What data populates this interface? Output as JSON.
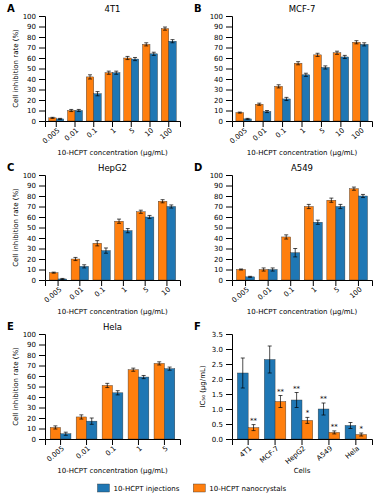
{
  "chart_data": [
    {
      "type": "bar",
      "label": "A",
      "title": "4T1",
      "xlabel": "10-HCPT concentration (μg/mL)",
      "ylabel": "Cell inhibition rate (%)",
      "categories": [
        "0.005",
        "0.01",
        "0.1",
        "1",
        "5",
        "10",
        "100"
      ],
      "series": [
        {
          "name": "10-HCPT nanocrystals",
          "values": [
            3,
            10,
            42,
            46,
            60,
            73,
            88
          ],
          "errors": [
            0.5,
            1.0,
            2,
            1.5,
            1.5,
            1.5,
            1.5
          ]
        },
        {
          "name": "10-HCPT injections",
          "values": [
            2,
            10,
            26,
            46,
            59,
            64,
            76
          ],
          "errors": [
            0.5,
            1.0,
            2,
            1.5,
            1.5,
            1.5,
            1.5
          ]
        }
      ],
      "ylim": [
        0,
        100
      ],
      "yticks": [
        0,
        10,
        20,
        30,
        40,
        50,
        60,
        70,
        80,
        90,
        100
      ]
    },
    {
      "type": "bar",
      "label": "B",
      "title": "MCF-7",
      "xlabel": "10-HCPT concentration (μg/mL)",
      "categories": [
        "0.005",
        "0.01",
        "0.1",
        "1",
        "5",
        "10",
        "100"
      ],
      "series": [
        {
          "name": "10-HCPT nanocrystals",
          "values": [
            8,
            16,
            33,
            55,
            63,
            65,
            75
          ],
          "errors": [
            0.5,
            1.0,
            1.5,
            1.5,
            1.5,
            1.5,
            1.5
          ]
        },
        {
          "name": "10-HCPT injections",
          "values": [
            2,
            9,
            21,
            44,
            51,
            61,
            73
          ],
          "errors": [
            0.5,
            1.0,
            1.5,
            1.5,
            1.5,
            1.5,
            1.5
          ]
        }
      ],
      "ylim": [
        0,
        100
      ],
      "yticks": [
        0,
        10,
        20,
        30,
        40,
        50,
        60,
        70,
        80,
        90,
        100
      ]
    },
    {
      "type": "bar",
      "label": "C",
      "title": "HepG2",
      "xlabel": "10-HCPT concentration (μg/mL)",
      "ylabel": "Cell inhibition rate (%)",
      "categories": [
        "0.005",
        "0.01",
        "0.1",
        "1",
        "5",
        "10"
      ],
      "series": [
        {
          "name": "10-HCPT nanocrystals",
          "values": [
            7,
            20,
            35,
            56,
            65,
            75
          ],
          "errors": [
            0.5,
            1.5,
            2.5,
            2,
            1.5,
            1.5
          ]
        },
        {
          "name": "10-HCPT injections",
          "values": [
            1,
            13,
            28,
            47,
            60,
            70
          ],
          "errors": [
            0.5,
            1.5,
            2.5,
            2,
            1.5,
            1.5
          ]
        }
      ],
      "ylim": [
        0,
        100
      ],
      "yticks": [
        0,
        10,
        20,
        30,
        40,
        50,
        60,
        70,
        80,
        90,
        100
      ]
    },
    {
      "type": "bar",
      "label": "D",
      "title": "A549",
      "xlabel": "10-HCPT concentration (μg/mL)",
      "categories": [
        "0.005",
        "0.01",
        "0.1",
        "1",
        "5",
        "100"
      ],
      "series": [
        {
          "name": "10-HCPT nanocrystals",
          "values": [
            10,
            10,
            41,
            70,
            76,
            87
          ],
          "errors": [
            0.5,
            1.5,
            2,
            2,
            2,
            1.5
          ]
        },
        {
          "name": "10-HCPT injections",
          "values": [
            3,
            10,
            26,
            55,
            70,
            80
          ],
          "errors": [
            0.5,
            1.5,
            4,
            2,
            2,
            1.5
          ]
        }
      ],
      "ylim": [
        0,
        100
      ],
      "yticks": [
        0,
        10,
        20,
        30,
        40,
        50,
        60,
        70,
        80,
        90,
        100
      ]
    },
    {
      "type": "bar",
      "label": "E",
      "title": "Hela",
      "xlabel": "10-HCPT concentration (μg/mL)",
      "ylabel": "Cell inhibition rate (%)",
      "categories": [
        "0.005",
        "0.01",
        "0.1",
        "1",
        "5"
      ],
      "series": [
        {
          "name": "10-HCPT nanocrystals",
          "values": [
            11,
            21,
            51,
            66,
            72
          ],
          "errors": [
            1.5,
            2,
            2,
            1.5,
            1.5
          ]
        },
        {
          "name": "10-HCPT injections",
          "values": [
            5,
            17,
            44,
            59,
            67
          ],
          "errors": [
            1.5,
            3,
            2,
            1.5,
            1.5
          ]
        }
      ],
      "ylim": [
        0,
        100
      ],
      "yticks": [
        0,
        10,
        20,
        30,
        40,
        50,
        60,
        70,
        80,
        90,
        100
      ]
    },
    {
      "type": "bar",
      "label": "F",
      "xlabel": "Cells",
      "ylabel": "IC₅₀ (μg/mL)",
      "categories": [
        "4T1",
        "MCF-7",
        "HepG2",
        "A549",
        "Hela"
      ],
      "series": [
        {
          "name": "10-HCPT injections",
          "values": [
            2.2,
            2.65,
            1.3,
            1.0,
            0.45
          ],
          "errors": [
            0.5,
            0.45,
            0.25,
            0.2,
            0.1
          ],
          "annotations": [
            null,
            null,
            "**",
            "**",
            null
          ]
        },
        {
          "name": "10-HCPT nanocrystals",
          "values": [
            0.38,
            1.25,
            0.62,
            0.22,
            0.15
          ],
          "errors": [
            0.1,
            0.2,
            0.1,
            0.05,
            0.05
          ],
          "annotations": [
            "**",
            "**",
            "*",
            "**",
            "*"
          ]
        }
      ],
      "ylim": [
        0,
        3.5
      ],
      "yticks": [
        {
          "value": 0,
          "label": "0.0"
        },
        0.5,
        {
          "value": 1,
          "label": "1.0"
        },
        1.5,
        {
          "value": 2,
          "label": "2.0"
        },
        2.5,
        {
          "value": 3,
          "label": "3.0"
        },
        3.5
      ],
      "legend": "bottom"
    }
  ]
}
